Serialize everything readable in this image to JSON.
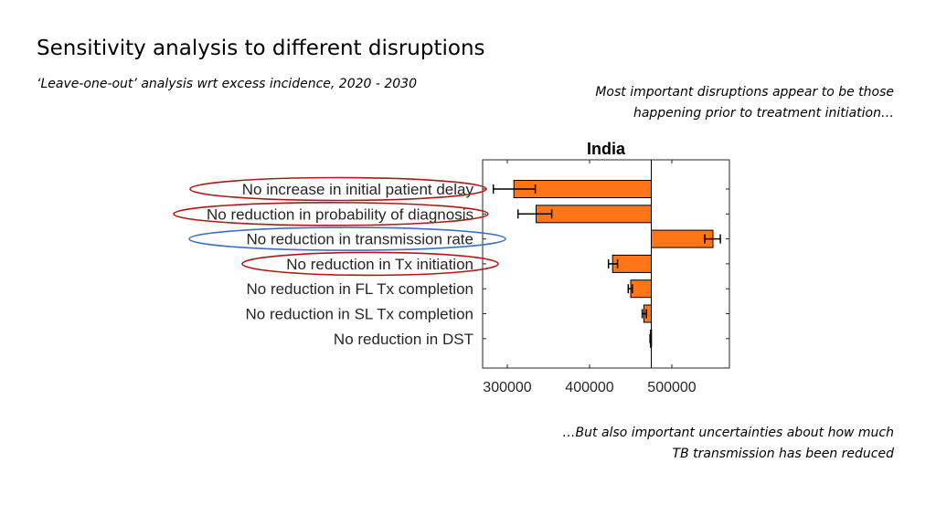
{
  "slide": {
    "title": "Sensitivity analysis to different disruptions",
    "subtitle": "‘Leave-one-out’ analysis wrt excess incidence, 2020 - 2030",
    "note_top": [
      "Most important disruptions appear to be those",
      "happening prior to treatment initiation…"
    ],
    "note_bottom": [
      "…But also important uncertainties about how much",
      "TB transmission has been reduced"
    ]
  },
  "colors": {
    "bar": "#FF7518",
    "highlight_red": "#B01818",
    "highlight_blue": "#3C6EC8"
  },
  "chart_data": {
    "type": "bar",
    "orientation": "horizontal",
    "title": "India",
    "baseline": 475000,
    "xlim": [
      270000,
      570000
    ],
    "xticks": [
      300000,
      400000,
      500000
    ],
    "xtick_labels": [
      "300000",
      "400000",
      "500000"
    ],
    "categories": [
      "No increase in initial patient delay",
      "No reduction in probability of diagnosis",
      "No reduction in transmission rate",
      "No reduction in Tx initiation",
      "No reduction in FL Tx completion",
      "No reduction in SL Tx completion",
      "No reduction in DST"
    ],
    "values": [
      308000,
      335000,
      550000,
      428000,
      450000,
      466000,
      474000
    ],
    "error_low": [
      283000,
      313000,
      540000,
      423000,
      447000,
      464000,
      473500
    ],
    "error_high": [
      334000,
      354000,
      559000,
      434000,
      452000,
      469000,
      474500
    ],
    "highlights": [
      {
        "category": "No increase in initial patient delay",
        "color": "red"
      },
      {
        "category": "No reduction in probability of diagnosis",
        "color": "red"
      },
      {
        "category": "No reduction in transmission rate",
        "color": "blue"
      },
      {
        "category": "No reduction in Tx initiation",
        "color": "red"
      }
    ]
  }
}
